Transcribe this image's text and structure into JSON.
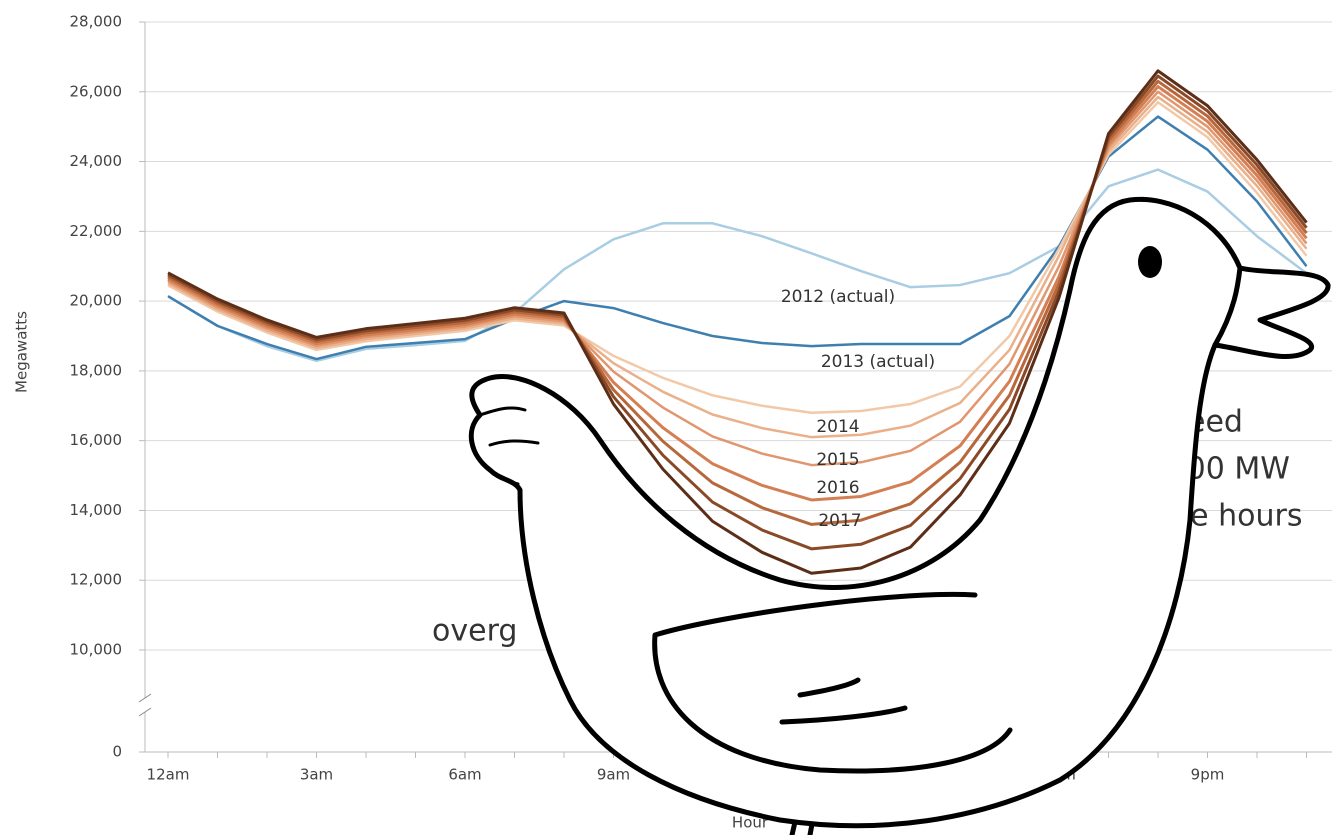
{
  "chart_data": {
    "type": "line",
    "ylabel": "Megawatts",
    "xlabel": "Hour",
    "categories": [
      "12am",
      null,
      null,
      "3am",
      null,
      null,
      "6am",
      null,
      null,
      "9am",
      null,
      null,
      null,
      null,
      null,
      null,
      null,
      null,
      "6pm",
      null,
      null,
      "9pm",
      null,
      null
    ],
    "ylim": [
      0,
      28000
    ],
    "yticks": [
      0,
      {
        "value": 10000,
        "label": "10,000"
      },
      {
        "value": 12000,
        "label": "12,000"
      },
      {
        "value": 14000,
        "label": "14,000"
      },
      {
        "value": 16000,
        "label": "16,000"
      },
      {
        "value": 18000,
        "label": "18,000"
      },
      {
        "value": 20000,
        "label": "20,000"
      },
      {
        "value": 22000,
        "label": "22,000"
      },
      {
        "value": 24000,
        "label": "24,000"
      },
      {
        "value": 26000,
        "label": "26,000"
      },
      {
        "value": 28000,
        "label": "28,000"
      }
    ],
    "axis_break": true,
    "grid": true,
    "series": [
      {
        "name": "2012 (actual)",
        "color": "#a9cde3",
        "values": [
          20140,
          19290,
          18710,
          18290,
          18630,
          18740,
          18860,
          19660,
          20910,
          21770,
          22230,
          22230,
          21860,
          21370,
          20860,
          20400,
          20460,
          20800,
          21570,
          23290,
          23770,
          23140,
          21860,
          20800
        ]
      },
      {
        "name": "2013 (actual)",
        "color": "#3f7fb0",
        "values": [
          20140,
          19290,
          18770,
          18340,
          18690,
          18800,
          18910,
          19490,
          20000,
          19800,
          19370,
          19000,
          18800,
          18710,
          18770,
          18770,
          18770,
          19570,
          21570,
          24140,
          25290,
          24340,
          22860,
          21000
        ]
      },
      {
        "name": "2014",
        "color": "#f2c9a8",
        "values": [
          20450,
          19700,
          19100,
          18600,
          18850,
          19000,
          19150,
          19450,
          19300,
          18430,
          17800,
          17300,
          17000,
          16800,
          16850,
          17050,
          17550,
          19000,
          21500,
          24200,
          25700,
          24700,
          23100,
          21300
        ]
      },
      {
        "name": "2015",
        "color": "#e9b08a",
        "values": [
          20510,
          19760,
          19160,
          18660,
          18910,
          19060,
          19210,
          19510,
          19360,
          18220,
          17400,
          16750,
          16360,
          16100,
          16170,
          16430,
          17080,
          18600,
          21300,
          24300,
          25850,
          24850,
          23300,
          21500
        ]
      },
      {
        "name": "2016",
        "color": "#e0966e",
        "values": [
          20570,
          19820,
          19220,
          18720,
          18970,
          19120,
          19270,
          19570,
          19420,
          17980,
          16950,
          16120,
          15630,
          15300,
          15380,
          15710,
          16540,
          18200,
          21000,
          24400,
          26000,
          25000,
          23450,
          21650
        ]
      },
      {
        "name": "2017",
        "color": "#d47e53",
        "values": [
          20630,
          19880,
          19280,
          18780,
          19030,
          19180,
          19330,
          19630,
          19480,
          17670,
          16370,
          15340,
          14720,
          14300,
          14400,
          14820,
          15850,
          17700,
          20700,
          24500,
          26150,
          25150,
          23600,
          21800
        ]
      },
      {
        "color": "#b7673c",
        "values": [
          20690,
          19940,
          19340,
          18840,
          19090,
          19240,
          19390,
          19690,
          19540,
          17460,
          15980,
          14790,
          14080,
          13600,
          13720,
          14190,
          15380,
          17300,
          20500,
          24600,
          26300,
          25300,
          23750,
          21950
        ]
      },
      {
        "color": "#8a4a28",
        "values": [
          20750,
          20000,
          19400,
          18900,
          19150,
          19300,
          19450,
          19750,
          19600,
          17260,
          15580,
          14240,
          13440,
          12900,
          13030,
          13570,
          14910,
          16900,
          20300,
          24700,
          26450,
          25450,
          23900,
          22100
        ]
      },
      {
        "color": "#5c2e18",
        "values": [
          20810,
          20060,
          19460,
          18960,
          19210,
          19360,
          19510,
          19810,
          19660,
          17050,
          15180,
          13690,
          12800,
          12200,
          12350,
          12950,
          14440,
          16500,
          20100,
          24800,
          26600,
          25600,
          24050,
          22250
        ]
      }
    ],
    "annotations": [
      "overg",
      "need",
      ",000 MW",
      "ree hours"
    ]
  }
}
